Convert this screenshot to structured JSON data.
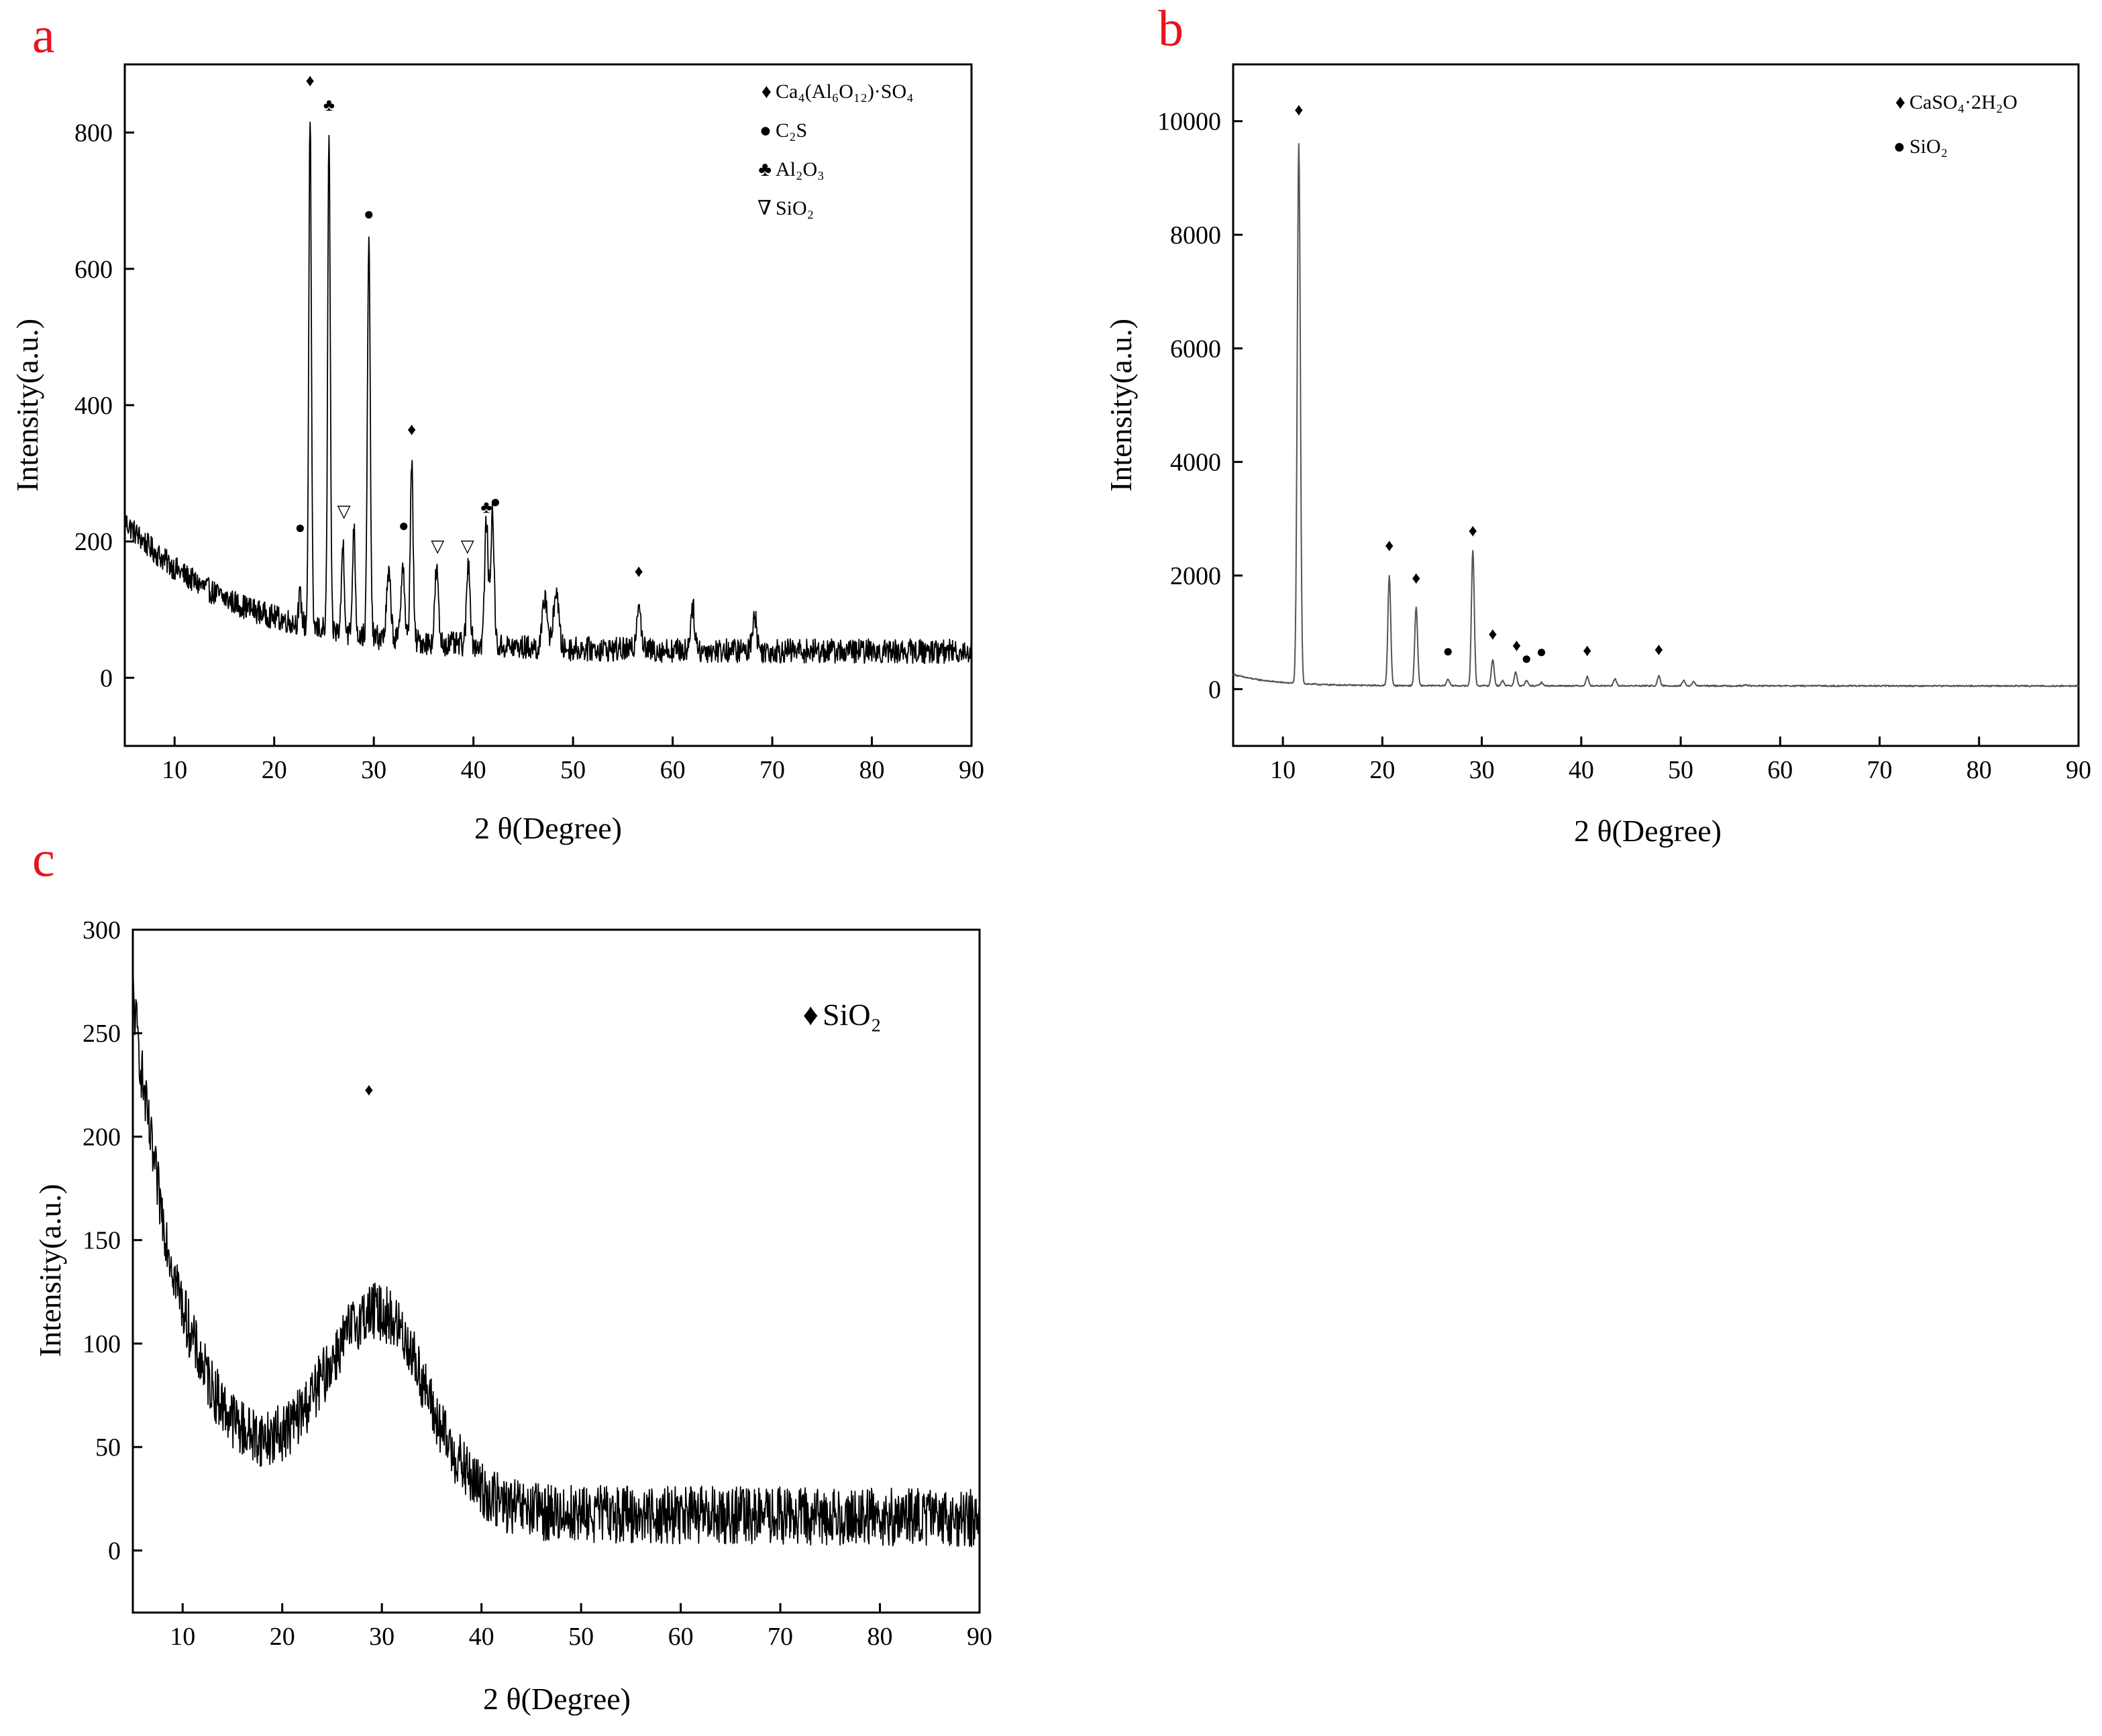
{
  "chart_data": [
    {
      "panel": "a",
      "type": "line",
      "xlabel": "2 θ(Degree)",
      "ylabel": "Intensity(a.u.)",
      "xlim": [
        5,
        90
      ],
      "ylim": [
        -100,
        900
      ],
      "xticks": [
        10,
        20,
        30,
        40,
        50,
        60,
        70,
        80,
        90
      ],
      "yticks": [
        0,
        200,
        400,
        600,
        800
      ],
      "baseline": {
        "start": 230,
        "decay": 0.09,
        "floor": 40,
        "floor_slope": -0.15,
        "noise": 18,
        "min_x": 5
      },
      "peaks": [
        {
          "x": 22.6,
          "y": 120,
          "w": 0.2
        },
        {
          "x": 23.6,
          "y": 830,
          "w": 0.18
        },
        {
          "x": 25.5,
          "y": 800,
          "w": 0.18
        },
        {
          "x": 26.9,
          "y": 200,
          "w": 0.2
        },
        {
          "x": 28.0,
          "y": 220,
          "w": 0.2
        },
        {
          "x": 29.5,
          "y": 640,
          "w": 0.2
        },
        {
          "x": 31.5,
          "y": 150,
          "w": 0.3
        },
        {
          "x": 32.9,
          "y": 170,
          "w": 0.25
        },
        {
          "x": 33.8,
          "y": 320,
          "w": 0.2
        },
        {
          "x": 36.3,
          "y": 160,
          "w": 0.25
        },
        {
          "x": 39.5,
          "y": 170,
          "w": 0.25
        },
        {
          "x": 41.3,
          "y": 230,
          "w": 0.25
        },
        {
          "x": 41.9,
          "y": 240,
          "w": 0.25
        },
        {
          "x": 47.2,
          "y": 120,
          "w": 0.35
        },
        {
          "x": 48.3,
          "y": 130,
          "w": 0.35
        },
        {
          "x": 56.6,
          "y": 115,
          "w": 0.3
        },
        {
          "x": 62.0,
          "y": 105,
          "w": 0.3
        },
        {
          "x": 68.2,
          "y": 95,
          "w": 0.3
        }
      ],
      "markers": [
        {
          "x": 23.6,
          "y": 868,
          "symbol": "♦"
        },
        {
          "x": 25.5,
          "y": 832,
          "symbol": "♣"
        },
        {
          "x": 29.5,
          "y": 672,
          "symbol": "●"
        },
        {
          "x": 33.8,
          "y": 356,
          "symbol": "♦"
        },
        {
          "x": 22.6,
          "y": 212,
          "symbol": "●"
        },
        {
          "x": 33.0,
          "y": 215,
          "symbol": "●"
        },
        {
          "x": 27.0,
          "y": 236,
          "symbol": "▽"
        },
        {
          "x": 36.4,
          "y": 185,
          "symbol": "▽"
        },
        {
          "x": 39.4,
          "y": 185,
          "symbol": "▽"
        },
        {
          "x": 41.3,
          "y": 242,
          "symbol": "♣"
        },
        {
          "x": 42.2,
          "y": 250,
          "symbol": "●"
        },
        {
          "x": 56.6,
          "y": 148,
          "symbol": "♦"
        }
      ],
      "legend": [
        {
          "symbol": "♦",
          "label": "Ca₄(Al₆O₁₂)·SO₄"
        },
        {
          "symbol": "●",
          "label": "C₂S"
        },
        {
          "symbol": "♣",
          "label": "Al₂O₃"
        },
        {
          "symbol": "∇",
          "label": "SiO₂"
        }
      ]
    },
    {
      "panel": "b",
      "type": "line",
      "xlabel": "2 θ(Degree)",
      "ylabel": "Intensity(a.u.)",
      "xlim": [
        5,
        90
      ],
      "ylim": [
        -1000,
        11000
      ],
      "xticks": [
        10,
        20,
        30,
        40,
        50,
        60,
        70,
        80,
        90
      ],
      "yticks": [
        0,
        2000,
        4000,
        6000,
        8000,
        10000
      ],
      "baseline": {
        "start": 260,
        "decay": 0.25,
        "floor": 60,
        "floor_slope": -0.5,
        "noise": 12,
        "min_x": 5
      },
      "peaks": [
        {
          "x": 11.6,
          "y": 9600,
          "w": 0.22
        },
        {
          "x": 20.7,
          "y": 2000,
          "w": 0.2
        },
        {
          "x": 23.4,
          "y": 1450,
          "w": 0.2
        },
        {
          "x": 26.6,
          "y": 180,
          "w": 0.2
        },
        {
          "x": 29.1,
          "y": 2450,
          "w": 0.2
        },
        {
          "x": 31.1,
          "y": 520,
          "w": 0.2
        },
        {
          "x": 32.1,
          "y": 150,
          "w": 0.2
        },
        {
          "x": 33.4,
          "y": 300,
          "w": 0.2
        },
        {
          "x": 34.5,
          "y": 150,
          "w": 0.2
        },
        {
          "x": 36.0,
          "y": 120,
          "w": 0.2
        },
        {
          "x": 40.6,
          "y": 220,
          "w": 0.2
        },
        {
          "x": 43.4,
          "y": 180,
          "w": 0.2
        },
        {
          "x": 47.8,
          "y": 230,
          "w": 0.2
        },
        {
          "x": 50.3,
          "y": 150,
          "w": 0.2
        },
        {
          "x": 51.3,
          "y": 130,
          "w": 0.2
        },
        {
          "x": 56.6,
          "y": 80,
          "w": 0.2
        }
      ],
      "markers": [
        {
          "x": 11.6,
          "y": 10100,
          "symbol": "♦"
        },
        {
          "x": 20.7,
          "y": 2430,
          "symbol": "♦"
        },
        {
          "x": 23.4,
          "y": 1860,
          "symbol": "♦"
        },
        {
          "x": 29.1,
          "y": 2690,
          "symbol": "♦"
        },
        {
          "x": 26.6,
          "y": 570,
          "symbol": "●"
        },
        {
          "x": 31.1,
          "y": 870,
          "symbol": "♦"
        },
        {
          "x": 33.5,
          "y": 670,
          "symbol": "♦"
        },
        {
          "x": 34.5,
          "y": 440,
          "symbol": "●"
        },
        {
          "x": 36.0,
          "y": 560,
          "symbol": "●"
        },
        {
          "x": 40.6,
          "y": 580,
          "symbol": "♦"
        },
        {
          "x": 47.8,
          "y": 600,
          "symbol": "♦"
        }
      ],
      "legend": [
        {
          "symbol": "♦",
          "label": "CaSO₄·2H₂O"
        },
        {
          "symbol": "●",
          "label": "SiO₂"
        }
      ]
    },
    {
      "panel": "c",
      "type": "line",
      "xlabel": "2 θ(Degree)",
      "ylabel": "Intensity(a.u.)",
      "xlim": [
        5,
        90
      ],
      "ylim": [
        -30,
        300
      ],
      "xticks": [
        10,
        20,
        30,
        40,
        50,
        60,
        70,
        80,
        90
      ],
      "yticks": [
        0,
        50,
        100,
        150,
        200,
        250,
        300
      ],
      "hump": {
        "center": 29.5,
        "height": 85,
        "width": 5.2
      },
      "baseline": {
        "start": 270,
        "decay": 0.2,
        "floor": 30,
        "floor_slope": -0.5,
        "noise": 14,
        "min_x": 5
      },
      "peaks": [
        {
          "x": 28.7,
          "y": 30,
          "w": 0.15
        },
        {
          "x": 30.8,
          "y": 20,
          "w": 0.15
        }
      ],
      "markers": [
        {
          "x": 28.7,
          "y": 220,
          "symbol": "♦"
        }
      ],
      "legend": [
        {
          "symbol": "♦",
          "label": "SiO₂"
        }
      ]
    }
  ]
}
